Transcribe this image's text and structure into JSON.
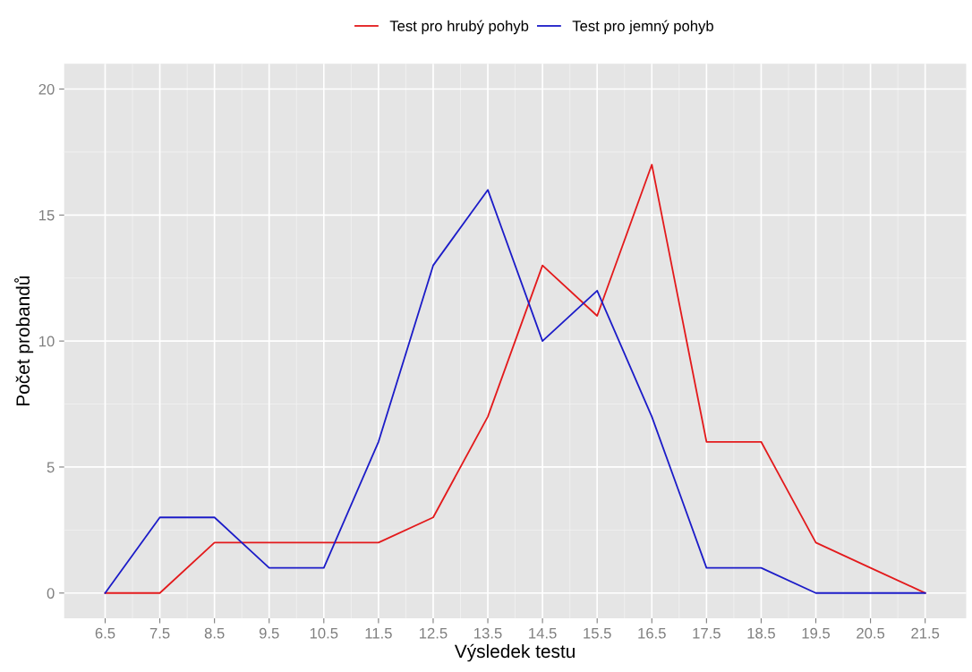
{
  "chart_data": {
    "type": "line",
    "xlabel": "Výsledek testu",
    "ylabel": "Počet probandů",
    "x": [
      6.5,
      7.5,
      8.5,
      9.5,
      10.5,
      11.5,
      12.5,
      13.5,
      14.5,
      15.5,
      16.5,
      17.5,
      18.5,
      19.5,
      20.5,
      21.5
    ],
    "series": [
      {
        "name": "Test pro hrubý pohyb",
        "color": "#e31a1c",
        "values": [
          0,
          0,
          2,
          2,
          2,
          2,
          3,
          7,
          13,
          11,
          17,
          6,
          6,
          2,
          1,
          0
        ]
      },
      {
        "name": "Test pro jemný pohyb",
        "color": "#1c1cc8",
        "values": [
          0,
          3,
          3,
          1,
          1,
          6,
          13,
          16,
          10,
          12,
          7,
          1,
          1,
          0,
          0,
          0
        ]
      }
    ],
    "xlim": [
      5.75,
      22.25
    ],
    "xticks": [
      6.5,
      7.5,
      8.5,
      9.5,
      10.5,
      11.5,
      12.5,
      13.5,
      14.5,
      15.5,
      16.5,
      17.5,
      18.5,
      19.5,
      20.5,
      21.5
    ],
    "ylim": [
      -1,
      21
    ],
    "yticks": [
      0,
      5,
      10,
      15,
      20
    ],
    "grid": true,
    "legend": "top",
    "marker": "none",
    "line_style": "solid"
  }
}
